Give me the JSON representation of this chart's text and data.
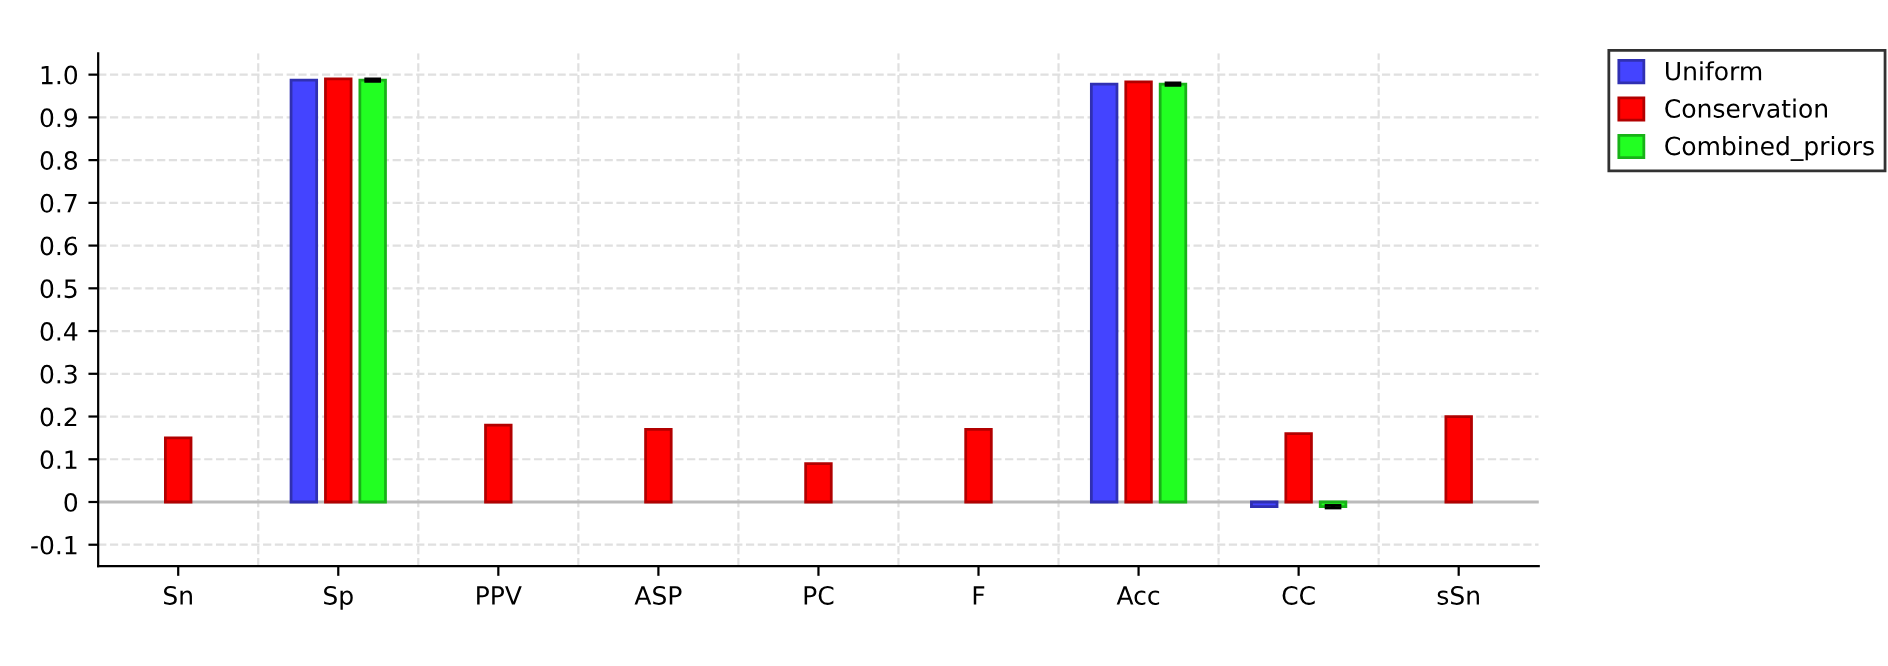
{
  "chart_data": {
    "type": "bar",
    "categories": [
      "Sn",
      "Sp",
      "PPV",
      "ASP",
      "PC",
      "F",
      "Acc",
      "CC",
      "sSn"
    ],
    "series": [
      {
        "name": "Uniform",
        "color": "#4444ff",
        "values": [
          null,
          0.987,
          null,
          null,
          null,
          null,
          0.978,
          -0.011,
          null
        ]
      },
      {
        "name": "Conservation",
        "color": "#ff0000",
        "values": [
          0.15,
          0.99,
          0.18,
          0.17,
          0.09,
          0.17,
          0.983,
          0.16,
          0.2
        ]
      },
      {
        "name": "Combined_priors",
        "color": "#22ff22",
        "values": [
          null,
          0.987,
          null,
          null,
          null,
          null,
          0.978,
          -0.011,
          null
        ],
        "errors": [
          null,
          0.003,
          null,
          null,
          null,
          null,
          0.003,
          0.003,
          null
        ]
      }
    ],
    "ylim": [
      -0.15,
      1.05
    ],
    "yticks": [
      {
        "value": -0.1,
        "label": "-0.1"
      },
      0,
      0.1,
      0.2,
      0.3,
      0.4,
      0.5,
      0.6,
      0.7,
      0.8,
      0.9,
      {
        "value": 1.0,
        "label": "1.0"
      }
    ],
    "grid": true,
    "legend": "right"
  }
}
